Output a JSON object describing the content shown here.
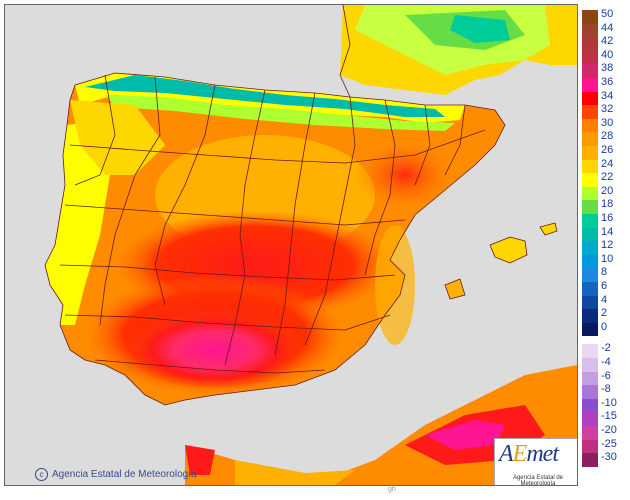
{
  "map": {
    "credit": "Agencia Estatal de Meteorología",
    "copyright_symbol": "c",
    "logo": {
      "brand_a": "A",
      "brand_e": "E",
      "brand_rest": "met",
      "subtitle": "Agencia Estatal de Meteorología"
    },
    "bottom_mark": "gh",
    "colors": {
      "sea": "#dcdcdc",
      "land_base": "#ff8c00",
      "border": "#6b1a1a"
    }
  },
  "legend": {
    "positive": [
      {
        "label": "50",
        "color": "#8b4513"
      },
      {
        "label": "44",
        "color": "#a0412d"
      },
      {
        "label": "42",
        "color": "#b03a3a"
      },
      {
        "label": "40",
        "color": "#c0304a"
      },
      {
        "label": "38",
        "color": "#d02a6a"
      },
      {
        "label": "36",
        "color": "#ff1493"
      },
      {
        "label": "34",
        "color": "#ff0000"
      },
      {
        "label": "32",
        "color": "#ff4500"
      },
      {
        "label": "30",
        "color": "#ff8000"
      },
      {
        "label": "28",
        "color": "#ff9900"
      },
      {
        "label": "26",
        "color": "#ffb000"
      },
      {
        "label": "24",
        "color": "#ffd700"
      },
      {
        "label": "22",
        "color": "#ffff00"
      },
      {
        "label": "20",
        "color": "#adff2f"
      },
      {
        "label": "18",
        "color": "#66dd44"
      },
      {
        "label": "16",
        "color": "#00cc99"
      },
      {
        "label": "14",
        "color": "#00bbaa"
      },
      {
        "label": "12",
        "color": "#00aacc"
      },
      {
        "label": "10",
        "color": "#0099dd"
      },
      {
        "label": "8",
        "color": "#1e88e5"
      },
      {
        "label": "6",
        "color": "#1565c0"
      },
      {
        "label": "4",
        "color": "#0d47a1"
      },
      {
        "label": "2",
        "color": "#0a2a80"
      },
      {
        "label": "0",
        "color": "#0a1a60"
      }
    ],
    "negative": [
      {
        "label": "-2",
        "color": "#e8d8f0"
      },
      {
        "label": "-4",
        "color": "#d6bfe8"
      },
      {
        "label": "-6",
        "color": "#c2a0e0"
      },
      {
        "label": "-8",
        "color": "#a878d8"
      },
      {
        "label": "-10",
        "color": "#8a4fd0"
      },
      {
        "label": "-15",
        "color": "#b040c0"
      },
      {
        "label": "-20",
        "color": "#d040a0"
      },
      {
        "label": "-25",
        "color": "#c03080"
      },
      {
        "label": "-30",
        "color": "#8a2060"
      }
    ]
  }
}
